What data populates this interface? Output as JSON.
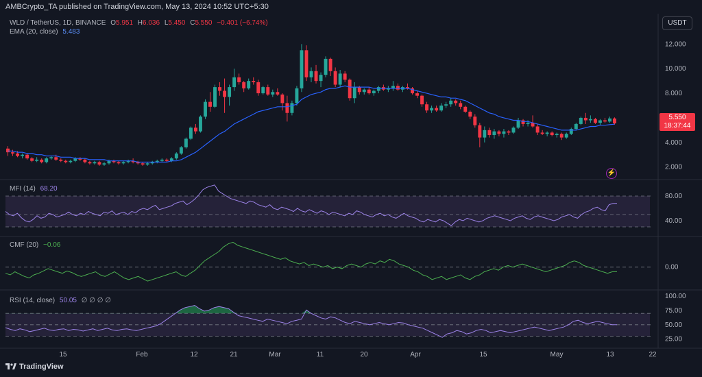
{
  "header": {
    "publisher": "AMBCrypto_TA published on TradingView.com, May 13, 2024 10:52 UTC+5:30"
  },
  "legend": {
    "symbol": "WLD / TetherUS, 1D, BINANCE",
    "open_label": "O",
    "open": "5.951",
    "high_label": "H",
    "high": "6.036",
    "low_label": "L",
    "low": "5.450",
    "close_label": "C",
    "close": "5.550",
    "change": "−0.401 (−6.74%)",
    "ema_label": "EMA (20, close)",
    "ema_value": "5.483"
  },
  "currency_button": "USDT",
  "price_tag": {
    "price": "5.550",
    "countdown": "18:37:44"
  },
  "mfi": {
    "label": "MFI (14)",
    "value": "68.20"
  },
  "cmf": {
    "label": "CMF (20)",
    "value": "−0.06"
  },
  "rsi": {
    "label": "RSI (14, close)",
    "value": "50.05",
    "extras": "∅ ∅ ∅ ∅"
  },
  "logo_text": "TradingView",
  "colors": {
    "background": "#131722",
    "up": "#26a69a",
    "down": "#f23645",
    "ema": "#2962ff",
    "mfi": "#9c83e8",
    "cmf": "#4caf50",
    "rsi": "#9c83e8",
    "band": "#2a2540"
  },
  "chart_data": [
    {
      "type": "candlestick",
      "title": "WLD / TetherUS, 1D, BINANCE",
      "x_ticks": [
        "15",
        "Feb",
        "12",
        "21",
        "Mar",
        "11",
        "20",
        "Apr",
        "15",
        "May",
        "13",
        "22"
      ],
      "y_ticks": [
        "2.000",
        "4.000",
        "6.000",
        "8.000",
        "10.000",
        "12.000"
      ],
      "ylim": [
        1.2,
        12.8
      ],
      "grid": false,
      "candles": [
        [
          3.5,
          3.7,
          2.9,
          3.2
        ],
        [
          3.2,
          3.4,
          2.9,
          3.1
        ],
        [
          3.1,
          3.3,
          2.8,
          2.9
        ],
        [
          2.9,
          3.1,
          2.7,
          3.0
        ],
        [
          3.0,
          3.1,
          2.6,
          2.7
        ],
        [
          2.7,
          2.8,
          2.4,
          2.5
        ],
        [
          2.5,
          2.8,
          2.4,
          2.6
        ],
        [
          2.6,
          2.7,
          2.3,
          2.4
        ],
        [
          2.4,
          2.8,
          2.3,
          2.7
        ],
        [
          2.7,
          2.9,
          2.6,
          2.8
        ],
        [
          2.8,
          3.0,
          2.5,
          2.6
        ],
        [
          2.6,
          2.7,
          2.4,
          2.5
        ],
        [
          2.5,
          2.6,
          2.3,
          2.4
        ],
        [
          2.4,
          2.6,
          2.3,
          2.5
        ],
        [
          2.5,
          2.8,
          2.4,
          2.7
        ],
        [
          2.7,
          2.8,
          2.5,
          2.6
        ],
        [
          2.6,
          2.7,
          2.3,
          2.4
        ],
        [
          2.4,
          2.5,
          2.2,
          2.3
        ],
        [
          2.3,
          2.5,
          2.2,
          2.4
        ],
        [
          2.4,
          2.5,
          2.1,
          2.2
        ],
        [
          2.2,
          2.4,
          2.1,
          2.3
        ],
        [
          2.3,
          2.6,
          2.2,
          2.5
        ],
        [
          2.5,
          2.6,
          2.3,
          2.4
        ],
        [
          2.4,
          2.5,
          2.2,
          2.3
        ],
        [
          2.3,
          2.5,
          2.2,
          2.4
        ],
        [
          2.4,
          2.6,
          2.3,
          2.5
        ],
        [
          2.5,
          2.7,
          2.3,
          2.4
        ],
        [
          2.4,
          2.5,
          2.2,
          2.3
        ],
        [
          2.3,
          2.4,
          2.1,
          2.2
        ],
        [
          2.2,
          2.4,
          2.1,
          2.3
        ],
        [
          2.3,
          2.5,
          2.2,
          2.4
        ],
        [
          2.4,
          2.6,
          2.3,
          2.5
        ],
        [
          2.5,
          2.7,
          2.4,
          2.6
        ],
        [
          2.6,
          2.7,
          2.4,
          2.5
        ],
        [
          2.5,
          2.8,
          2.4,
          2.7
        ],
        [
          2.7,
          3.2,
          2.6,
          3.1
        ],
        [
          3.1,
          3.7,
          3.0,
          3.6
        ],
        [
          3.6,
          4.4,
          3.5,
          4.3
        ],
        [
          4.3,
          5.3,
          4.2,
          5.2
        ],
        [
          5.2,
          5.5,
          4.7,
          4.9
        ],
        [
          4.9,
          6.2,
          4.8,
          6.1
        ],
        [
          6.1,
          7.5,
          5.9,
          7.3
        ],
        [
          7.3,
          8.1,
          6.5,
          6.9
        ],
        [
          6.9,
          8.7,
          6.8,
          8.5
        ],
        [
          8.5,
          8.9,
          7.8,
          8.2
        ],
        [
          8.2,
          9.2,
          6.4,
          7.7
        ],
        [
          7.7,
          8.7,
          7.0,
          8.5
        ],
        [
          8.5,
          10.0,
          8.2,
          9.3
        ],
        [
          9.3,
          9.6,
          8.7,
          8.9
        ],
        [
          8.9,
          9.0,
          8.1,
          8.4
        ],
        [
          8.4,
          9.2,
          8.3,
          9.0
        ],
        [
          9.0,
          9.3,
          8.7,
          8.9
        ],
        [
          8.9,
          9.1,
          7.8,
          8.0
        ],
        [
          8.0,
          8.6,
          7.9,
          8.5
        ],
        [
          8.5,
          8.7,
          7.8,
          7.9
        ],
        [
          7.9,
          8.3,
          7.7,
          8.1
        ],
        [
          8.1,
          8.4,
          7.8,
          7.9
        ],
        [
          7.9,
          8.0,
          6.6,
          7.2
        ],
        [
          7.2,
          7.8,
          5.7,
          6.4
        ],
        [
          6.4,
          7.4,
          6.2,
          7.2
        ],
        [
          7.2,
          8.6,
          7.0,
          8.4
        ],
        [
          8.4,
          12.0,
          8.1,
          11.5
        ],
        [
          11.5,
          11.9,
          9.0,
          9.3
        ],
        [
          9.3,
          10.1,
          8.9,
          9.8
        ],
        [
          9.8,
          10.3,
          8.8,
          9.0
        ],
        [
          9.0,
          9.7,
          8.5,
          9.5
        ],
        [
          9.5,
          11.0,
          9.3,
          10.8
        ],
        [
          10.8,
          10.9,
          9.4,
          9.8
        ],
        [
          9.8,
          10.1,
          8.5,
          8.7
        ],
        [
          8.7,
          9.9,
          8.5,
          9.6
        ],
        [
          9.6,
          9.8,
          8.9,
          9.1
        ],
        [
          9.1,
          9.2,
          7.4,
          7.6
        ],
        [
          7.6,
          8.9,
          7.2,
          8.5
        ],
        [
          8.5,
          8.6,
          7.9,
          8.1
        ],
        [
          8.1,
          8.4,
          7.9,
          8.3
        ],
        [
          8.3,
          8.5,
          7.9,
          8.0
        ],
        [
          8.0,
          8.3,
          7.8,
          8.2
        ],
        [
          8.2,
          8.6,
          8.0,
          8.5
        ],
        [
          8.5,
          8.7,
          8.2,
          8.3
        ],
        [
          8.3,
          8.6,
          8.1,
          8.4
        ],
        [
          8.4,
          9.0,
          8.2,
          8.6
        ],
        [
          8.6,
          8.8,
          8.2,
          8.3
        ],
        [
          8.3,
          8.6,
          8.1,
          8.5
        ],
        [
          8.5,
          8.8,
          8.3,
          8.4
        ],
        [
          8.4,
          8.5,
          7.9,
          8.0
        ],
        [
          8.0,
          8.2,
          7.6,
          7.8
        ],
        [
          7.8,
          7.9,
          6.9,
          7.1
        ],
        [
          7.1,
          7.3,
          6.4,
          6.6
        ],
        [
          6.6,
          7.0,
          6.4,
          6.8
        ],
        [
          6.8,
          7.0,
          6.5,
          6.6
        ],
        [
          6.6,
          7.2,
          6.5,
          7.0
        ],
        [
          7.0,
          7.3,
          6.8,
          7.1
        ],
        [
          7.1,
          7.6,
          6.9,
          7.4
        ],
        [
          7.4,
          7.5,
          7.0,
          7.2
        ],
        [
          7.2,
          7.4,
          6.7,
          6.9
        ],
        [
          6.9,
          7.0,
          6.4,
          6.5
        ],
        [
          6.5,
          6.6,
          5.9,
          6.1
        ],
        [
          6.1,
          6.3,
          5.2,
          5.4
        ],
        [
          5.4,
          5.6,
          3.6,
          4.4
        ],
        [
          4.4,
          5.3,
          4.0,
          5.0
        ],
        [
          5.0,
          5.2,
          4.4,
          4.6
        ],
        [
          4.6,
          5.1,
          4.3,
          4.9
        ],
        [
          4.9,
          5.0,
          4.5,
          4.7
        ],
        [
          4.7,
          5.1,
          4.4,
          4.9
        ],
        [
          4.9,
          5.0,
          4.6,
          4.8
        ],
        [
          4.8,
          5.3,
          4.7,
          5.2
        ],
        [
          5.2,
          6.0,
          5.1,
          5.8
        ],
        [
          5.8,
          5.9,
          5.3,
          5.5
        ],
        [
          5.5,
          5.8,
          5.3,
          5.6
        ],
        [
          5.6,
          6.2,
          5.2,
          5.3
        ],
        [
          5.3,
          5.5,
          4.6,
          4.8
        ],
        [
          4.8,
          5.0,
          4.6,
          4.7
        ],
        [
          4.7,
          4.9,
          4.5,
          4.8
        ],
        [
          4.8,
          4.9,
          4.5,
          4.6
        ],
        [
          4.6,
          4.8,
          4.4,
          4.7
        ],
        [
          4.7,
          4.8,
          4.2,
          4.4
        ],
        [
          4.4,
          4.8,
          4.3,
          4.7
        ],
        [
          4.7,
          5.2,
          4.6,
          5.1
        ],
        [
          5.1,
          5.6,
          5.0,
          5.5
        ],
        [
          5.5,
          6.1,
          5.4,
          6.0
        ],
        [
          6.0,
          6.4,
          5.5,
          5.8
        ],
        [
          5.8,
          6.2,
          5.6,
          5.9
        ],
        [
          5.9,
          6.0,
          5.5,
          5.6
        ],
        [
          5.6,
          5.9,
          5.4,
          5.8
        ],
        [
          5.8,
          6.0,
          5.6,
          5.7
        ],
        [
          5.7,
          6.1,
          5.6,
          5.951
        ],
        [
          5.951,
          6.036,
          5.45,
          5.55
        ]
      ],
      "ema": [
        3.3,
        3.3,
        3.2,
        3.2,
        3.1,
        3.1,
        3.0,
        3.0,
        2.9,
        2.9,
        2.9,
        2.8,
        2.8,
        2.8,
        2.7,
        2.7,
        2.7,
        2.6,
        2.6,
        2.6,
        2.6,
        2.5,
        2.5,
        2.5,
        2.5,
        2.5,
        2.5,
        2.4,
        2.4,
        2.4,
        2.4,
        2.4,
        2.4,
        2.4,
        2.5,
        2.5,
        2.6,
        2.8,
        3.0,
        3.2,
        3.5,
        3.8,
        4.1,
        4.4,
        4.7,
        4.9,
        5.2,
        5.5,
        5.7,
        5.9,
        6.1,
        6.3,
        6.5,
        6.6,
        6.7,
        6.8,
        6.9,
        6.9,
        6.9,
        7.0,
        7.1,
        7.5,
        7.7,
        7.9,
        8.0,
        8.1,
        8.3,
        8.4,
        8.4,
        8.5,
        8.6,
        8.5,
        8.5,
        8.5,
        8.5,
        8.5,
        8.4,
        8.4,
        8.4,
        8.4,
        8.4,
        8.4,
        8.4,
        8.4,
        8.3,
        8.2,
        8.1,
        8.0,
        7.9,
        7.8,
        7.7,
        7.7,
        7.6,
        7.6,
        7.5,
        7.4,
        7.2,
        7.0,
        6.8,
        6.6,
        6.4,
        6.3,
        6.1,
        6.0,
        5.9,
        5.8,
        5.8,
        5.7,
        5.7,
        5.6,
        5.5,
        5.4,
        5.3,
        5.2,
        5.1,
        5.0,
        5.0,
        5.0,
        5.0,
        5.1,
        5.2,
        5.3,
        5.3,
        5.4,
        5.4,
        5.45,
        5.483
      ]
    },
    {
      "type": "line",
      "title": "MFI (14)",
      "y_ticks": [
        "40.00",
        "80.00"
      ],
      "ylim": [
        20,
        100
      ],
      "bands": [
        30,
        50,
        80
      ],
      "values": [
        55,
        50,
        48,
        52,
        45,
        40,
        38,
        42,
        48,
        44,
        46,
        52,
        50,
        46,
        48,
        50,
        54,
        50,
        48,
        52,
        50,
        55,
        52,
        50,
        48,
        54,
        52,
        56,
        50,
        52,
        54,
        50,
        55,
        53,
        58,
        60,
        58,
        62,
        65,
        58,
        60,
        62,
        64,
        68,
        70,
        72,
        66,
        70,
        75,
        82,
        90,
        94,
        96,
        98,
        88,
        84,
        80,
        76,
        74,
        72,
        70,
        68,
        72,
        70,
        66,
        64,
        62,
        66,
        60,
        58,
        62,
        60,
        58,
        55,
        60,
        56,
        54,
        58,
        55,
        52,
        56,
        54,
        50,
        54,
        52,
        50,
        48,
        52,
        50,
        56,
        54,
        50,
        48,
        46,
        50,
        52,
        48,
        50,
        46,
        44,
        48,
        52,
        48,
        46,
        44,
        40,
        38,
        42,
        40,
        38,
        42,
        40,
        36,
        32,
        38,
        42,
        40,
        44,
        42,
        40,
        38,
        40,
        44,
        46,
        48,
        46,
        44,
        42,
        40,
        44,
        46,
        48,
        44,
        42,
        46,
        48,
        46,
        44,
        42,
        40,
        42,
        46,
        48,
        50,
        46,
        44,
        50,
        54,
        56,
        60,
        62,
        58,
        56,
        66,
        68,
        68.2
      ]
    },
    {
      "type": "line",
      "title": "CMF (20)",
      "y_ticks": [
        "0.00"
      ],
      "zero_line": 0,
      "ylim": [
        -0.25,
        0.35
      ],
      "values": [
        -0.08,
        -0.1,
        -0.06,
        -0.09,
        -0.12,
        -0.14,
        -0.1,
        -0.08,
        -0.05,
        -0.02,
        -0.04,
        -0.06,
        -0.08,
        -0.05,
        -0.07,
        -0.1,
        -0.12,
        -0.1,
        -0.08,
        -0.06,
        -0.1,
        -0.12,
        -0.09,
        -0.06,
        -0.1,
        -0.14,
        -0.16,
        -0.14,
        -0.12,
        -0.15,
        -0.18,
        -0.16,
        -0.14,
        -0.12,
        -0.1,
        -0.08,
        -0.06,
        -0.1,
        -0.12,
        -0.08,
        -0.04,
        0.02,
        0.08,
        0.12,
        0.16,
        0.2,
        0.26,
        0.3,
        0.32,
        0.28,
        0.26,
        0.24,
        0.22,
        0.2,
        0.18,
        0.16,
        0.14,
        0.12,
        0.1,
        0.12,
        0.08,
        0.06,
        0.04,
        0.06,
        0.02,
        0.04,
        0.02,
        0.0,
        0.02,
        -0.02,
        0.0,
        -0.02,
        0.02,
        0.04,
        0.02,
        0.0,
        0.04,
        0.06,
        0.04,
        0.08,
        0.06,
        0.1,
        0.08,
        0.04,
        0.02,
        0.0,
        -0.04,
        -0.06,
        -0.1,
        -0.12,
        -0.16,
        -0.14,
        -0.12,
        -0.16,
        -0.14,
        -0.12,
        -0.1,
        -0.14,
        -0.16,
        -0.12,
        -0.1,
        -0.06,
        -0.04,
        -0.02,
        -0.04,
        0.0,
        0.02,
        0.0,
        0.02,
        0.04,
        0.02,
        0.0,
        -0.02,
        -0.04,
        -0.06,
        -0.04,
        -0.02,
        0.0,
        0.02,
        0.06,
        0.08,
        0.06,
        0.02,
        0.0,
        -0.02,
        -0.04,
        -0.06,
        -0.08,
        -0.06,
        -0.06
      ]
    },
    {
      "type": "line",
      "title": "RSI (14, close)",
      "y_ticks": [
        "25.00",
        "50.00",
        "75.00",
        "100.00"
      ],
      "ylim": [
        15,
        105
      ],
      "bands": [
        30,
        50,
        70
      ],
      "values": [
        45,
        42,
        40,
        43,
        41,
        38,
        40,
        42,
        44,
        41,
        40,
        42,
        43,
        40,
        42,
        41,
        39,
        41,
        43,
        40,
        42,
        44,
        41,
        40,
        42,
        43,
        41,
        40,
        42,
        44,
        46,
        48,
        52,
        58,
        64,
        70,
        76,
        80,
        82,
        84,
        78,
        74,
        76,
        80,
        82,
        80,
        78,
        72,
        66,
        64,
        62,
        60,
        58,
        56,
        60,
        58,
        56,
        54,
        52,
        56,
        58,
        60,
        76,
        70,
        66,
        62,
        60,
        64,
        62,
        58,
        54,
        52,
        56,
        54,
        52,
        50,
        52,
        54,
        52,
        50,
        52,
        54,
        53,
        50,
        48,
        46,
        44,
        40,
        36,
        32,
        28,
        34,
        36,
        40,
        38,
        34,
        36,
        40,
        42,
        40,
        36,
        38,
        40,
        38,
        36,
        38,
        40,
        42,
        44,
        46,
        44,
        42,
        40,
        42,
        44,
        46,
        50,
        56,
        58,
        54,
        52,
        54,
        56,
        54,
        52,
        50,
        50.05
      ]
    }
  ]
}
